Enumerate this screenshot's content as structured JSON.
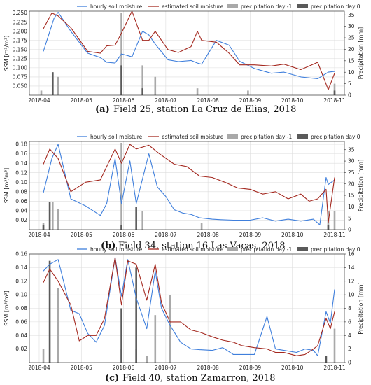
{
  "legend_labels": [
    "hourly soil moisture",
    "estimated soil moisture",
    "precipitation day -1",
    "precipitation day 0"
  ],
  "colors": {
    "hourly": "#3f7fdc",
    "estimated": "#a4281f",
    "precip_prev": "#a9a9a9",
    "precip_0": "#5a5a5a"
  },
  "chart_data": [
    {
      "type": "line",
      "panel": "a",
      "caption_label": "(a)",
      "caption_text": "Field 25, station La Cruz de Elias, 2018",
      "ylabel": "SSM [m³/m³]",
      "y2label": "Precipitation [mm]",
      "xticks": [
        "2018-04",
        "2018-05",
        "2018-06",
        "2018-07",
        "2018-08",
        "2018-09",
        "2018-10",
        "2018-11"
      ],
      "xlim": [
        0,
        7
      ],
      "ylim": [
        0.025,
        0.255
      ],
      "yticks": [
        "0.050",
        "0.075",
        "0.100",
        "0.125",
        "0.150",
        "0.175",
        "0.200",
        "0.225",
        "0.250"
      ],
      "y2lim": [
        0,
        36.6
      ],
      "y2ticks": [
        "0",
        "5",
        "10",
        "15",
        "20",
        "25",
        "30",
        "35"
      ],
      "series": [
        {
          "name": "hourly soil moisture",
          "x": [
            0.1,
            0.35,
            0.45,
            0.75,
            1.15,
            1.45,
            1.6,
            1.8,
            1.95,
            2.2,
            2.45,
            2.6,
            2.75,
            3.05,
            3.3,
            3.6,
            3.75,
            3.85,
            4.2,
            4.5,
            4.75,
            5.1,
            5.5,
            5.8,
            6.2,
            6.6,
            6.85,
            7.0
          ],
          "y": [
            0.145,
            0.235,
            0.252,
            0.2,
            0.14,
            0.128,
            0.115,
            0.113,
            0.138,
            0.13,
            0.2,
            0.19,
            0.165,
            0.122,
            0.117,
            0.12,
            0.113,
            0.11,
            0.175,
            0.162,
            0.118,
            0.098,
            0.085,
            0.088,
            0.075,
            0.07,
            0.088,
            0.09
          ]
        },
        {
          "name": "estimated soil moisture",
          "x": [
            0.1,
            0.3,
            0.45,
            0.75,
            1.15,
            1.45,
            1.6,
            1.8,
            1.95,
            2.2,
            2.45,
            2.6,
            2.75,
            3.05,
            3.3,
            3.6,
            3.75,
            3.85,
            4.2,
            4.5,
            4.75,
            5.1,
            5.5,
            5.8,
            6.2,
            6.6,
            6.85,
            7.0
          ],
          "y": [
            0.207,
            0.25,
            0.242,
            0.21,
            0.145,
            0.14,
            0.16,
            0.162,
            0.195,
            0.255,
            0.175,
            0.175,
            0.2,
            0.15,
            0.142,
            0.158,
            0.2,
            0.175,
            0.17,
            0.14,
            0.108,
            0.108,
            0.105,
            0.11,
            0.095,
            0.115,
            0.04,
            0.085
          ]
        }
      ],
      "precip_prev": {
        "x": [
          0.05,
          0.32,
          0.45,
          1.95,
          2.45,
          2.75,
          3.75,
          4.95,
          7.0
        ],
        "values": [
          2,
          10,
          8,
          36,
          13,
          8,
          3,
          2,
          5
        ]
      },
      "precip_0": {
        "x": [
          0.32,
          1.95,
          2.45,
          7.0
        ],
        "values": [
          10,
          13,
          3,
          2
        ]
      }
    },
    {
      "type": "line",
      "panel": "b",
      "caption_label": "(b)",
      "caption_text": "Field 34, station 16 Las Vacas, 2018",
      "ylabel": "SSM [m³/m³]",
      "y2label": "Precipitation [mm]",
      "xticks": [
        "2018-04",
        "2018-05",
        "2018-06",
        "2018-07",
        "2018-08",
        "2018-09",
        "2018-10",
        "2018-11"
      ],
      "xlim": [
        0,
        7
      ],
      "ylim": [
        0,
        0.186
      ],
      "yticks": [
        "0.02",
        "0.04",
        "0.06",
        "0.08",
        "0.10",
        "0.12",
        "0.14",
        "0.16",
        "0.18"
      ],
      "y2lim": [
        0,
        38.6
      ],
      "y2ticks": [
        "0",
        "5",
        "10",
        "15",
        "20",
        "25",
        "30",
        "35"
      ],
      "series": [
        {
          "name": "hourly soil moisture",
          "x": [
            0.1,
            0.3,
            0.45,
            0.75,
            1.1,
            1.45,
            1.6,
            1.8,
            1.95,
            2.15,
            2.3,
            2.6,
            2.8,
            3.0,
            3.2,
            3.4,
            3.6,
            3.8,
            4.1,
            4.3,
            4.6,
            5.0,
            5.3,
            5.6,
            5.9,
            6.2,
            6.5,
            6.65,
            6.8,
            6.85,
            7.0
          ],
          "y": [
            0.078,
            0.15,
            0.18,
            0.065,
            0.05,
            0.03,
            0.055,
            0.15,
            0.055,
            0.145,
            0.055,
            0.16,
            0.09,
            0.07,
            0.042,
            0.035,
            0.032,
            0.025,
            0.022,
            0.021,
            0.02,
            0.02,
            0.025,
            0.018,
            0.022,
            0.018,
            0.022,
            0.01,
            0.11,
            0.095,
            0.105
          ]
        },
        {
          "name": "estimated soil moisture",
          "x": [
            0.1,
            0.25,
            0.45,
            0.75,
            1.1,
            1.45,
            1.8,
            1.95,
            2.15,
            2.3,
            2.6,
            2.85,
            3.2,
            3.5,
            3.8,
            4.1,
            4.4,
            4.7,
            5.0,
            5.3,
            5.6,
            5.9,
            6.2,
            6.4,
            6.6,
            6.8,
            6.85,
            7.0
          ],
          "y": [
            0.138,
            0.17,
            0.15,
            0.08,
            0.1,
            0.105,
            0.17,
            0.14,
            0.18,
            0.17,
            0.178,
            0.16,
            0.138,
            0.133,
            0.113,
            0.11,
            0.1,
            0.088,
            0.085,
            0.075,
            0.08,
            0.065,
            0.075,
            0.06,
            0.065,
            0.085,
            0.015,
            0.11
          ]
        }
      ],
      "precip_prev": {
        "x": [
          0.1,
          0.32,
          0.45,
          1.95,
          2.45,
          3.85,
          6.85,
          7.0
        ],
        "values": [
          3,
          12,
          9,
          38,
          8,
          3,
          8,
          8
        ]
      },
      "precip_0": {
        "x": [
          0.1,
          0.25,
          1.95,
          2.3,
          6.85
        ],
        "values": [
          2,
          12,
          2,
          10,
          2
        ]
      }
    },
    {
      "type": "line",
      "panel": "c",
      "caption_label": "(c)",
      "caption_text": "Field 40, station Zamarron, 2018",
      "ylabel": "SSM [m³/m³]",
      "y2label": "Precipitation [mm]",
      "xticks": [
        "2018-04",
        "2018-05",
        "2018-06",
        "2018-07",
        "2018-08",
        "2018-09",
        "2018-10",
        "2018-11"
      ],
      "xlim": [
        0,
        7
      ],
      "ylim": [
        0,
        0.16
      ],
      "yticks": [
        "0.02",
        "0.04",
        "0.06",
        "0.08",
        "0.10",
        "0.12",
        "0.14",
        "0.16"
      ],
      "y2lim": [
        0,
        16
      ],
      "y2ticks": [
        "0",
        "2",
        "4",
        "6",
        "8",
        "10",
        "12",
        "14",
        "16"
      ],
      "series": [
        {
          "name": "hourly soil moisture",
          "x": [
            0.1,
            0.25,
            0.45,
            0.75,
            0.95,
            1.15,
            1.35,
            1.55,
            1.8,
            1.95,
            2.1,
            2.3,
            2.55,
            2.75,
            2.9,
            3.1,
            3.35,
            3.6,
            3.8,
            4.1,
            4.35,
            4.6,
            4.8,
            5.1,
            5.4,
            5.6,
            5.8,
            6.1,
            6.3,
            6.5,
            6.6,
            6.8,
            6.9,
            7.0
          ],
          "y": [
            0.135,
            0.145,
            0.152,
            0.077,
            0.072,
            0.043,
            0.03,
            0.055,
            0.155,
            0.098,
            0.152,
            0.095,
            0.05,
            0.135,
            0.08,
            0.055,
            0.03,
            0.02,
            0.019,
            0.018,
            0.022,
            0.012,
            0.012,
            0.012,
            0.068,
            0.02,
            0.018,
            0.015,
            0.02,
            0.018,
            0.01,
            0.075,
            0.058,
            0.108
          ]
        },
        {
          "name": "estimated soil moisture",
          "x": [
            0.1,
            0.25,
            0.45,
            0.75,
            0.95,
            1.15,
            1.35,
            1.55,
            1.8,
            1.95,
            2.1,
            2.3,
            2.55,
            2.75,
            2.9,
            3.1,
            3.35,
            3.6,
            3.8,
            4.1,
            4.35,
            4.6,
            4.8,
            5.1,
            5.4,
            5.6,
            5.8,
            6.1,
            6.3,
            6.5,
            6.6,
            6.8,
            6.9,
            7.0
          ],
          "y": [
            0.118,
            0.138,
            0.12,
            0.085,
            0.032,
            0.04,
            0.04,
            0.065,
            0.155,
            0.085,
            0.15,
            0.145,
            0.092,
            0.145,
            0.088,
            0.06,
            0.06,
            0.048,
            0.045,
            0.038,
            0.033,
            0.03,
            0.025,
            0.022,
            0.02,
            0.015,
            0.015,
            0.01,
            0.012,
            0.02,
            0.025,
            0.065,
            0.05,
            0.075
          ]
        }
      ],
      "precip_prev": {
        "x": [
          0.1,
          0.45,
          1.95,
          2.3,
          2.55,
          2.75,
          3.1,
          7.0
        ],
        "values": [
          2,
          11,
          2,
          2,
          1,
          7,
          10,
          5
        ]
      },
      "precip_0": {
        "x": [
          0.25,
          1.95,
          2.3,
          6.8
        ],
        "values": [
          15,
          8,
          14,
          1
        ]
      }
    }
  ]
}
